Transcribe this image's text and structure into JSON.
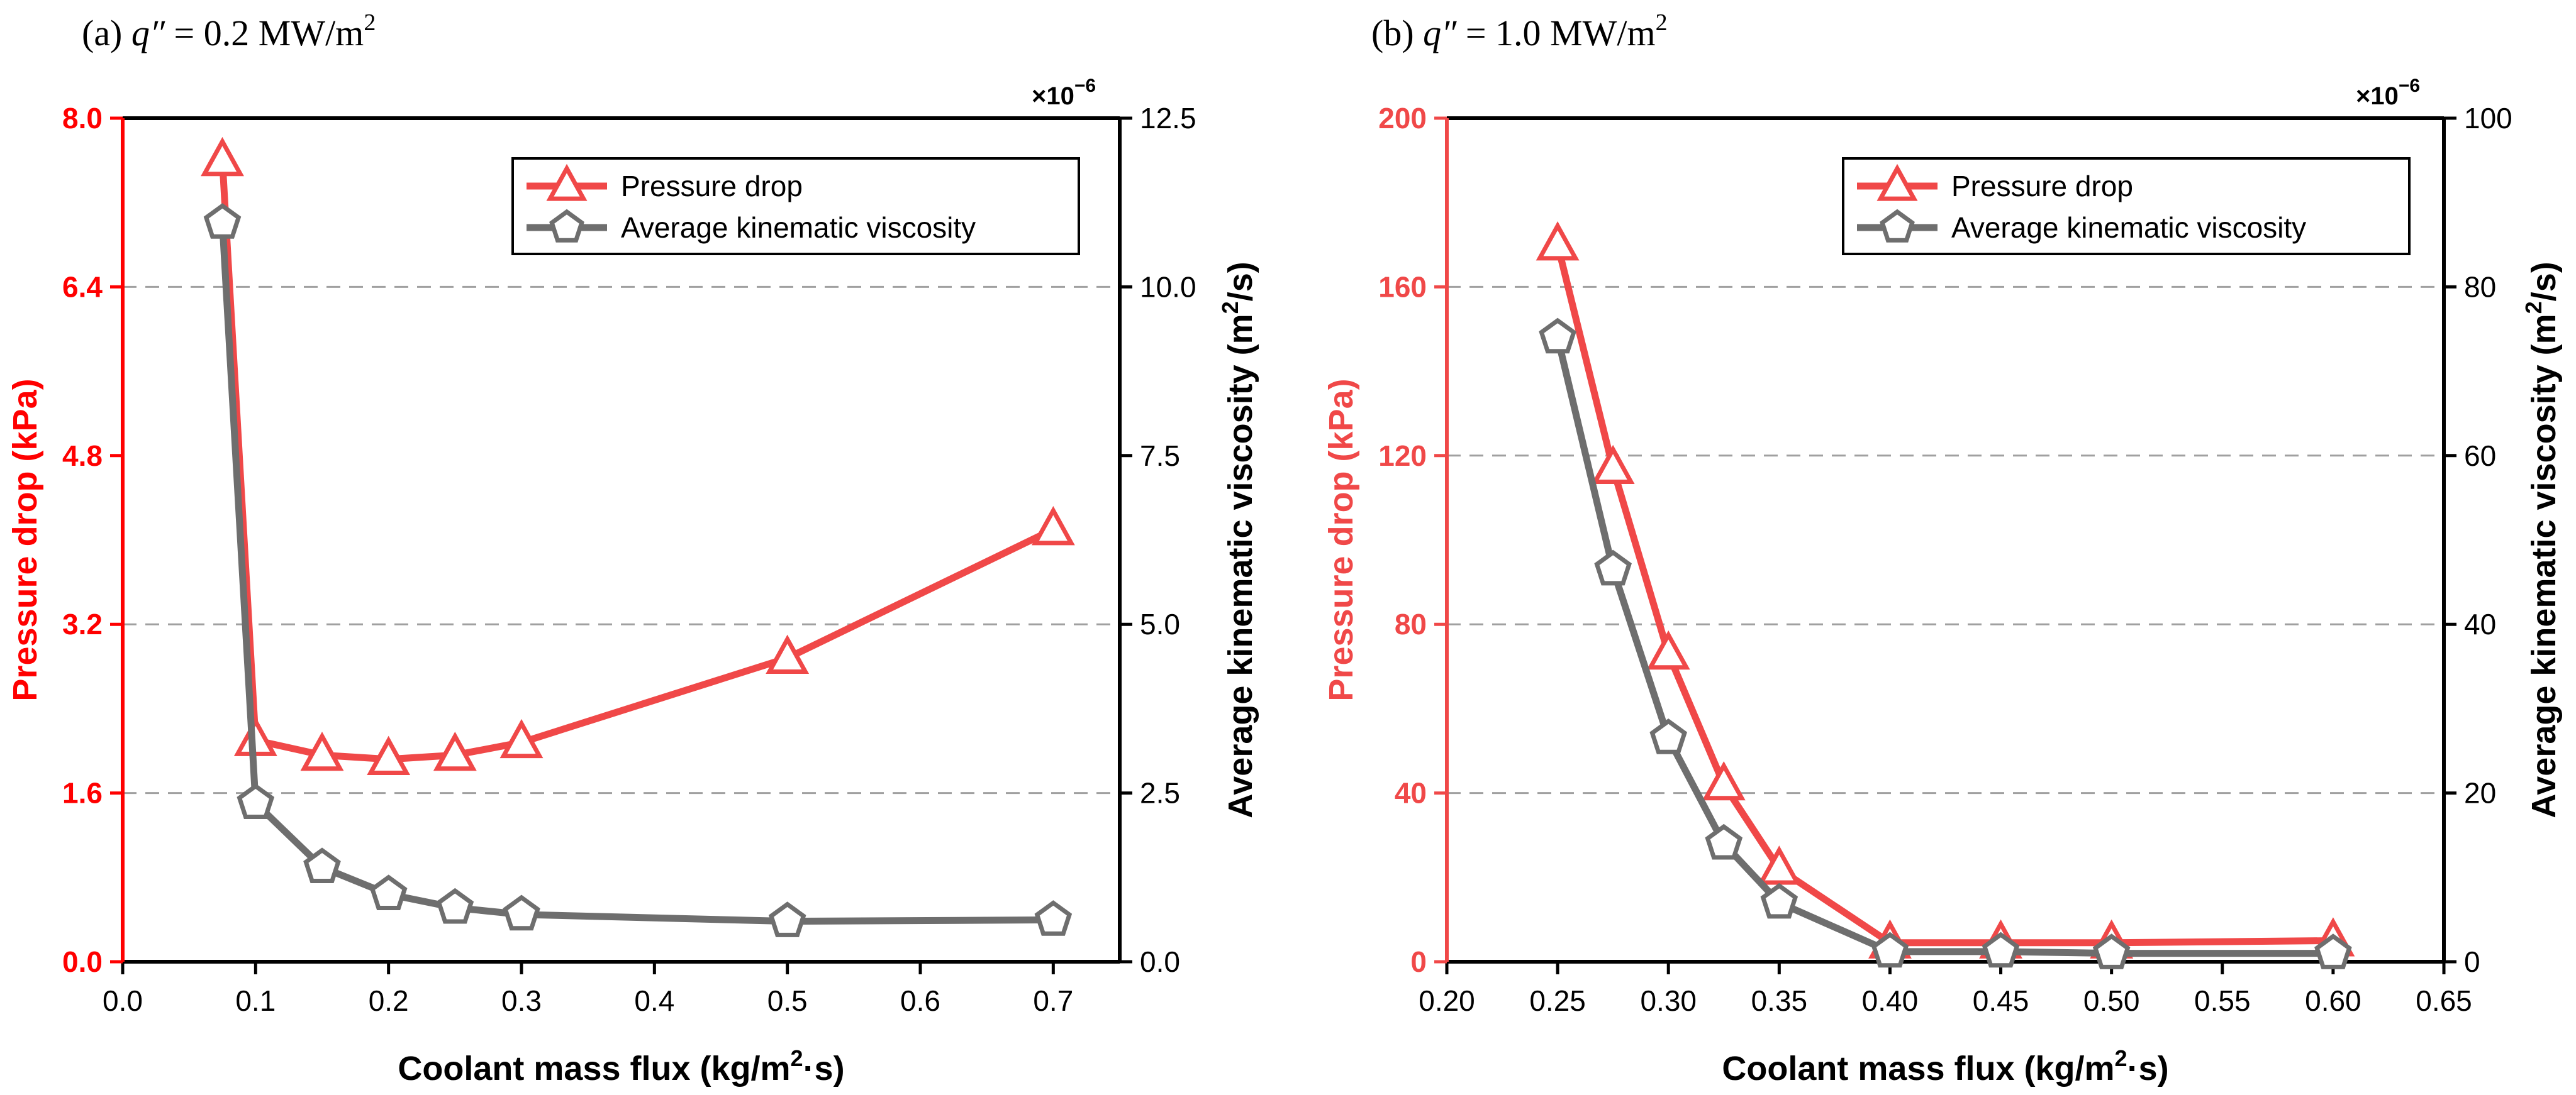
{
  "chart_data": [
    {
      "type": "line",
      "panel_label": "(a)",
      "title_var": "q″",
      "title_rest": " = 0.2 MW/m",
      "title_sup": "2",
      "xlabel_main": "Coolant mass flux (kg/m",
      "xlabel_sup": "2",
      "xlabel_tail": "·s)",
      "ylabel": "Pressure drop (kPa)",
      "ylabel2_main": "Average kinematic viscosity (m",
      "ylabel2_sup": "2",
      "ylabel2_tail": "/s)",
      "y2_multiplier": "×10",
      "y2_multiplier_exp": "−6",
      "xlim": [
        0.0,
        0.75
      ],
      "xticks": [
        0.0,
        0.1,
        0.2,
        0.3,
        0.4,
        0.5,
        0.6,
        0.7
      ],
      "xtick_labels": [
        "0.0",
        "0.1",
        "0.2",
        "0.3",
        "0.4",
        "0.5",
        "0.6",
        "0.7"
      ],
      "ylim": [
        0.0,
        8.0
      ],
      "yticks": [
        0.0,
        1.6,
        3.2,
        4.8,
        6.4,
        8.0
      ],
      "ytick_labels": [
        "0.0",
        "1.6",
        "3.2",
        "4.8",
        "6.4",
        "8.0"
      ],
      "y2lim": [
        0.0,
        12.5
      ],
      "y2ticks": [
        0.0,
        2.5,
        5.0,
        7.5,
        10.0,
        12.5
      ],
      "y2tick_labels": [
        "0.0",
        "2.5",
        "5.0",
        "7.5",
        "10.0",
        "12.5"
      ],
      "grid_y": [
        1.6,
        3.2,
        6.4
      ],
      "legend_position": "top-right",
      "series": [
        {
          "name": "Pressure drop",
          "axis": "left",
          "marker": "triangle",
          "color": "#f04848",
          "x": [
            0.075,
            0.1,
            0.15,
            0.2,
            0.25,
            0.3,
            0.5,
            0.7
          ],
          "y": [
            7.6,
            2.1,
            1.96,
            1.92,
            1.96,
            2.08,
            2.88,
            4.1
          ]
        },
        {
          "name": "Average kinematic viscosity",
          "axis": "right",
          "marker": "pentagon",
          "color": "#6e6e6e",
          "x": [
            0.075,
            0.1,
            0.15,
            0.2,
            0.25,
            0.3,
            0.5,
            0.7
          ],
          "y": [
            10.95,
            2.35,
            1.4,
            1.0,
            0.8,
            0.7,
            0.6,
            0.62
          ]
        }
      ]
    },
    {
      "type": "line",
      "panel_label": "(b)",
      "title_var": "q″",
      "title_rest": " = 1.0 MW/m",
      "title_sup": "2",
      "xlabel_main": "Coolant mass flux (kg/m",
      "xlabel_sup": "2",
      "xlabel_tail": "·s)",
      "ylabel": "Pressure drop (kPa)",
      "ylabel2_main": "Average kinematic viscosity (m",
      "ylabel2_sup": "2",
      "ylabel2_tail": "/s)",
      "y2_multiplier": "×10",
      "y2_multiplier_exp": "−6",
      "xlim": [
        0.2,
        0.65
      ],
      "xticks": [
        0.2,
        0.25,
        0.3,
        0.35,
        0.4,
        0.45,
        0.5,
        0.55,
        0.6,
        0.65
      ],
      "xtick_labels": [
        "0.20",
        "0.25",
        "0.30",
        "0.35",
        "0.40",
        "0.45",
        "0.50",
        "0.55",
        "0.60",
        "0.65"
      ],
      "ylim": [
        0,
        200
      ],
      "yticks": [
        0,
        40,
        80,
        120,
        160,
        200
      ],
      "ytick_labels": [
        "0",
        "40",
        "80",
        "120",
        "160",
        "200"
      ],
      "y2lim": [
        0,
        100
      ],
      "y2ticks": [
        0,
        20,
        40,
        60,
        80,
        100
      ],
      "y2tick_labels": [
        "0",
        "20",
        "40",
        "60",
        "80",
        "100"
      ],
      "grid_y": [
        40,
        80,
        120,
        160
      ],
      "legend_position": "top-right",
      "series": [
        {
          "name": "Pressure drop",
          "axis": "left",
          "marker": "triangle",
          "color": "#f04848",
          "x": [
            0.25,
            0.275,
            0.3,
            0.325,
            0.35,
            0.4,
            0.45,
            0.5,
            0.6
          ],
          "y": [
            170,
            117,
            73,
            42,
            22,
            4.5,
            4.5,
            4.5,
            5
          ]
        },
        {
          "name": "Average kinematic viscosity",
          "axis": "right",
          "marker": "pentagon",
          "color": "#6e6e6e",
          "x": [
            0.25,
            0.275,
            0.3,
            0.325,
            0.35,
            0.4,
            0.45,
            0.5,
            0.6
          ],
          "y": [
            74,
            46.5,
            26.5,
            14,
            7,
            1.2,
            1.2,
            1.0,
            1.0
          ]
        }
      ]
    }
  ]
}
